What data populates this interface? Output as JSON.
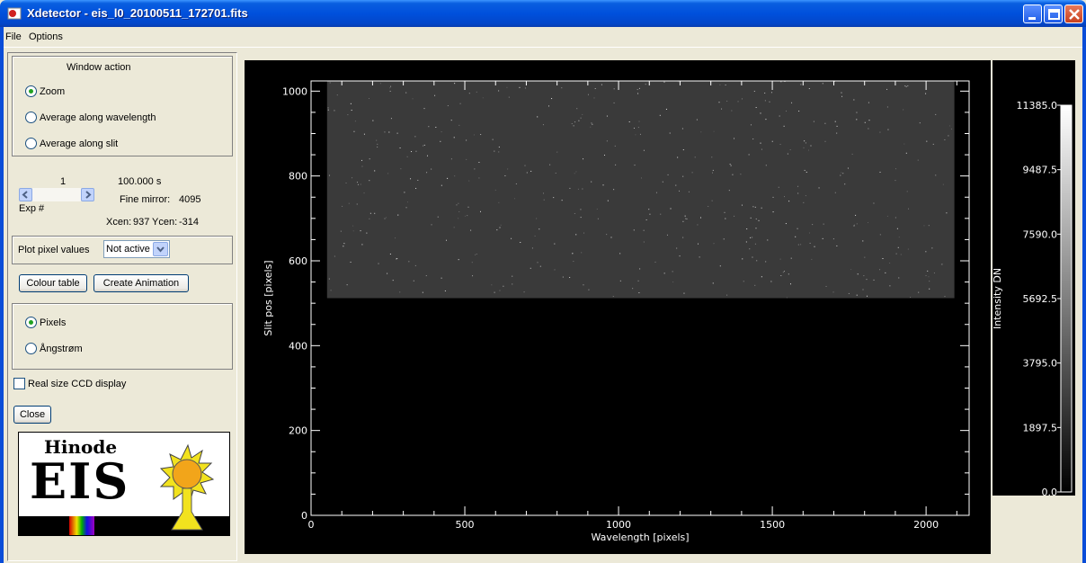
{
  "window": {
    "title": "Xdetector - eis_l0_20100511_172701.fits"
  },
  "menu": {
    "items": [
      "File",
      "Options"
    ]
  },
  "window_action": {
    "title": "Window action",
    "options": [
      {
        "label": "Zoom",
        "selected": true
      },
      {
        "label": "Average along wavelength",
        "selected": false
      },
      {
        "label": "Average along slit",
        "selected": false
      }
    ]
  },
  "exposure": {
    "number": "1",
    "time": "100.000 s",
    "label": "Exp #",
    "fine_mirror_label": "Fine mirror:",
    "fine_mirror_value": "4095",
    "xcen_label": "Xcen:",
    "xcen_value": "937",
    "ycen_label": "Ycen:",
    "ycen_value": "-314"
  },
  "plot_pixel": {
    "label": "Plot pixel values",
    "selected": "Not active"
  },
  "buttons": {
    "colour_table": "Colour table",
    "create_animation": "Create Animation",
    "close": "Close"
  },
  "units": {
    "options": [
      {
        "label": "Pixels",
        "selected": true
      },
      {
        "label": "Ångstrøm",
        "selected": false
      }
    ]
  },
  "real_size": {
    "label": "Real size CCD display",
    "checked": false
  },
  "logo": {
    "line1": "Hinode",
    "line2": "EIS"
  },
  "chart_data": [
    {
      "type": "heatmap",
      "xlabel": "Wavelength [pixels]",
      "ylabel": "Slit pos [pixels]",
      "xlim": [
        0,
        2140
      ],
      "ylim": [
        0,
        1024
      ],
      "xticks": [
        0,
        500,
        1000,
        1500,
        2000
      ],
      "yticks": [
        0,
        200,
        400,
        600,
        800,
        1000
      ],
      "image_extent": {
        "x": [
          52,
          2092
        ],
        "y": [
          512,
          1024
        ]
      }
    },
    {
      "type": "colorbar",
      "label": "Intensity DN",
      "ticks": [
        "11385.0",
        "9487.5",
        "7590.0",
        "5692.5",
        "3795.0",
        "1897.5",
        "0.0"
      ],
      "range": [
        0.0,
        11385.0
      ]
    }
  ],
  "colors": {
    "titlebar": "#0050DC",
    "plot_background": "#000000",
    "image_gray": "#3A3A3A"
  }
}
